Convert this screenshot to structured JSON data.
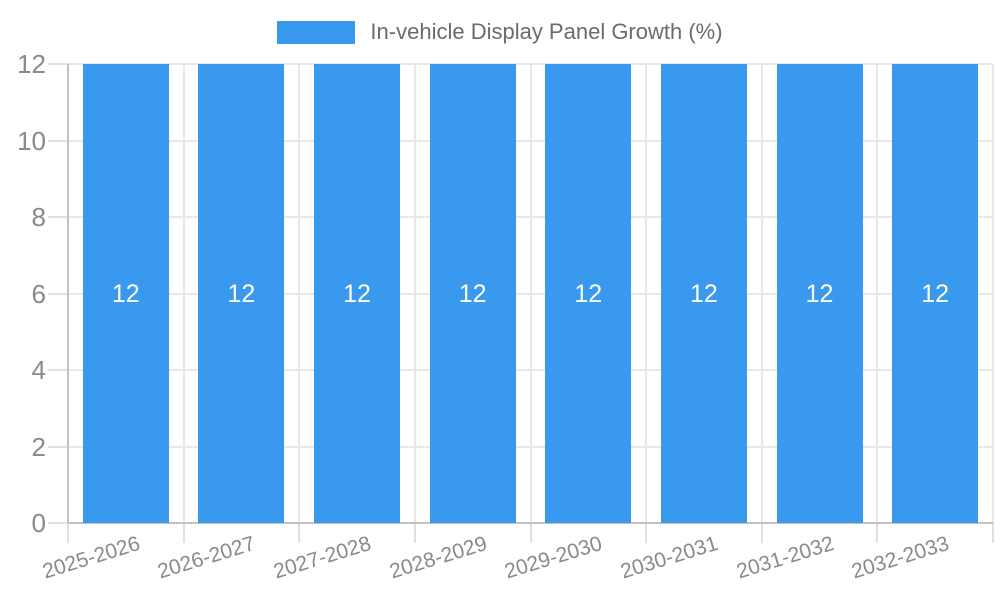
{
  "legend": {
    "label": "In-vehicle Display Panel Growth (%)"
  },
  "chart_data": {
    "type": "bar",
    "title": "In-vehicle Display Panel Growth (%)",
    "categories": [
      "2025-2026",
      "2026-2027",
      "2027-2028",
      "2028-2029",
      "2029-2030",
      "2030-2031",
      "2031-2032",
      "2032-2033"
    ],
    "values": [
      12,
      12,
      12,
      12,
      12,
      12,
      12,
      12
    ],
    "xlabel": "",
    "ylabel": "",
    "ylim": [
      0,
      12
    ],
    "y_ticks": [
      0,
      2,
      4,
      6,
      8,
      10,
      12
    ],
    "grid": true,
    "legend_position": "top",
    "colors": {
      "bar": "#3899ee",
      "value_label": "#ffffff",
      "grid": "#e8e8e8",
      "tick": "#e0e0e0",
      "axis": "#c2c2c2",
      "tick_label": "#8a8a8a",
      "legend_text": "#6b6b6b"
    }
  }
}
